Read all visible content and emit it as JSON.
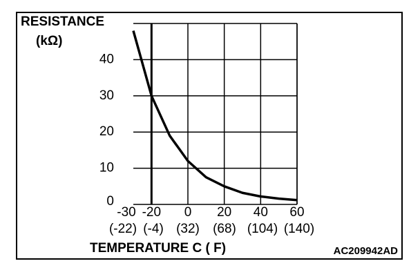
{
  "chart_data": {
    "type": "line",
    "title": "RESISTANCE",
    "y_unit": "(kΩ)",
    "x_label": "TEMPERATURE  C ( F)",
    "code": "AC209942AD",
    "x": [
      -30,
      -20,
      -10,
      0,
      10,
      20,
      30,
      40,
      50,
      60
    ],
    "series": [
      {
        "color": "#000000",
        "values": [
          48,
          30,
          19,
          12,
          7.5,
          5,
          3.2,
          2.2,
          1.6,
          1.2
        ]
      }
    ],
    "xlim": [
      -30,
      60
    ],
    "xticks": [
      -30,
      -20,
      0,
      20,
      40,
      60
    ],
    "x2_labels": [
      "(-22)",
      "(-4)",
      "(32)",
      "(68)",
      "(104)",
      "(140)"
    ],
    "ylim": [
      0,
      50
    ],
    "yticks": [
      0,
      10,
      20,
      30,
      40
    ],
    "grid": true
  }
}
